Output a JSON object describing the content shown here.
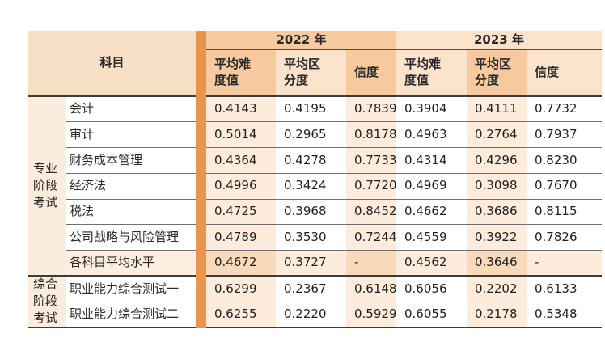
{
  "table": {
    "subject_header": "科目",
    "years": [
      "2022 年",
      "2023 年"
    ],
    "metric_headers": [
      "平均难\n度值",
      "平均区\n分度",
      "信度",
      "平均难\n度值",
      "平均区\n分度",
      "信度"
    ],
    "groups": [
      {
        "label": "专业\n阶段\n考试",
        "rows": [
          {
            "subject": "会计",
            "values": [
              "0.4143",
              "0.4195",
              "0.7839",
              "0.3904",
              "0.4111",
              "0.7732"
            ],
            "highlight": false
          },
          {
            "subject": "审计",
            "values": [
              "0.5014",
              "0.2965",
              "0.8178",
              "0.4963",
              "0.2764",
              "0.7937"
            ],
            "highlight": false
          },
          {
            "subject": "财务成本管理",
            "values": [
              "0.4364",
              "0.4278",
              "0.7733",
              "0.4314",
              "0.4296",
              "0.8230"
            ],
            "highlight": false
          },
          {
            "subject": "经济法",
            "values": [
              "0.4996",
              "0.3424",
              "0.7720",
              "0.4969",
              "0.3098",
              "0.7670"
            ],
            "highlight": false
          },
          {
            "subject": "税法",
            "values": [
              "0.4725",
              "0.3968",
              "0.8452",
              "0.4662",
              "0.3686",
              "0.8115"
            ],
            "highlight": false
          },
          {
            "subject": "公司战略与风险管理",
            "values": [
              "0.4789",
              "0.3530",
              "0.7244",
              "0.4559",
              "0.3922",
              "0.7826"
            ],
            "highlight": false
          },
          {
            "subject": "各科目平均水平",
            "values": [
              "0.4672",
              "0.3727",
              "-",
              "0.4562",
              "0.3646",
              "-"
            ],
            "highlight": true
          }
        ]
      },
      {
        "label": "综合\n阶段\n考试",
        "rows": [
          {
            "subject": "职业能力综合测试一",
            "values": [
              "0.6299",
              "0.2367",
              "0.6148",
              "0.6056",
              "0.2202",
              "0.6133"
            ],
            "highlight": false
          },
          {
            "subject": "职业能力综合测试二",
            "values": [
              "0.6255",
              "0.2220",
              "0.5929",
              "0.6055",
              "0.2178",
              "0.5348"
            ],
            "highlight": false
          }
        ]
      }
    ]
  },
  "colors": {
    "divider_stripe": "#e8954e",
    "header_dark": "#f6ca9e",
    "header_light": "#fae3ca",
    "subject_header_bg": "#f8e0c7",
    "column_tint": "#fdebdc",
    "highlight_row_dark": "#f8dabb",
    "highlight_row_light": "#fdecdc",
    "group_label_bg": "#fcecdd",
    "thick_border": "#3c3c3c",
    "thin_border": "#6f6f6f"
  }
}
